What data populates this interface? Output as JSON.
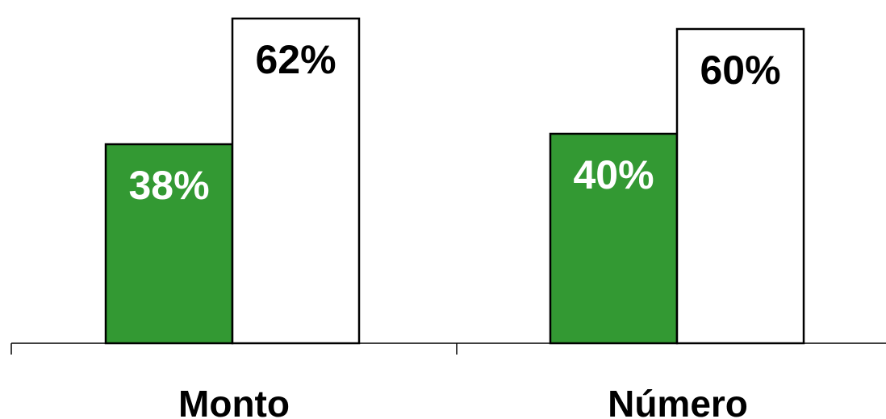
{
  "chart_data": {
    "type": "bar",
    "categories": [
      "Monto",
      "Número"
    ],
    "series": [
      {
        "values": [
          38,
          40
        ],
        "color": "#339933",
        "label_color": "#ffffff"
      },
      {
        "values": [
          62,
          60
        ],
        "color": "#ffffff",
        "label_color": "#000000"
      }
    ],
    "value_labels": [
      [
        "38%",
        "40%"
      ],
      [
        "62%",
        "60%"
      ]
    ],
    "ylim": [
      0,
      64
    ],
    "grid": false,
    "legend": "none"
  }
}
